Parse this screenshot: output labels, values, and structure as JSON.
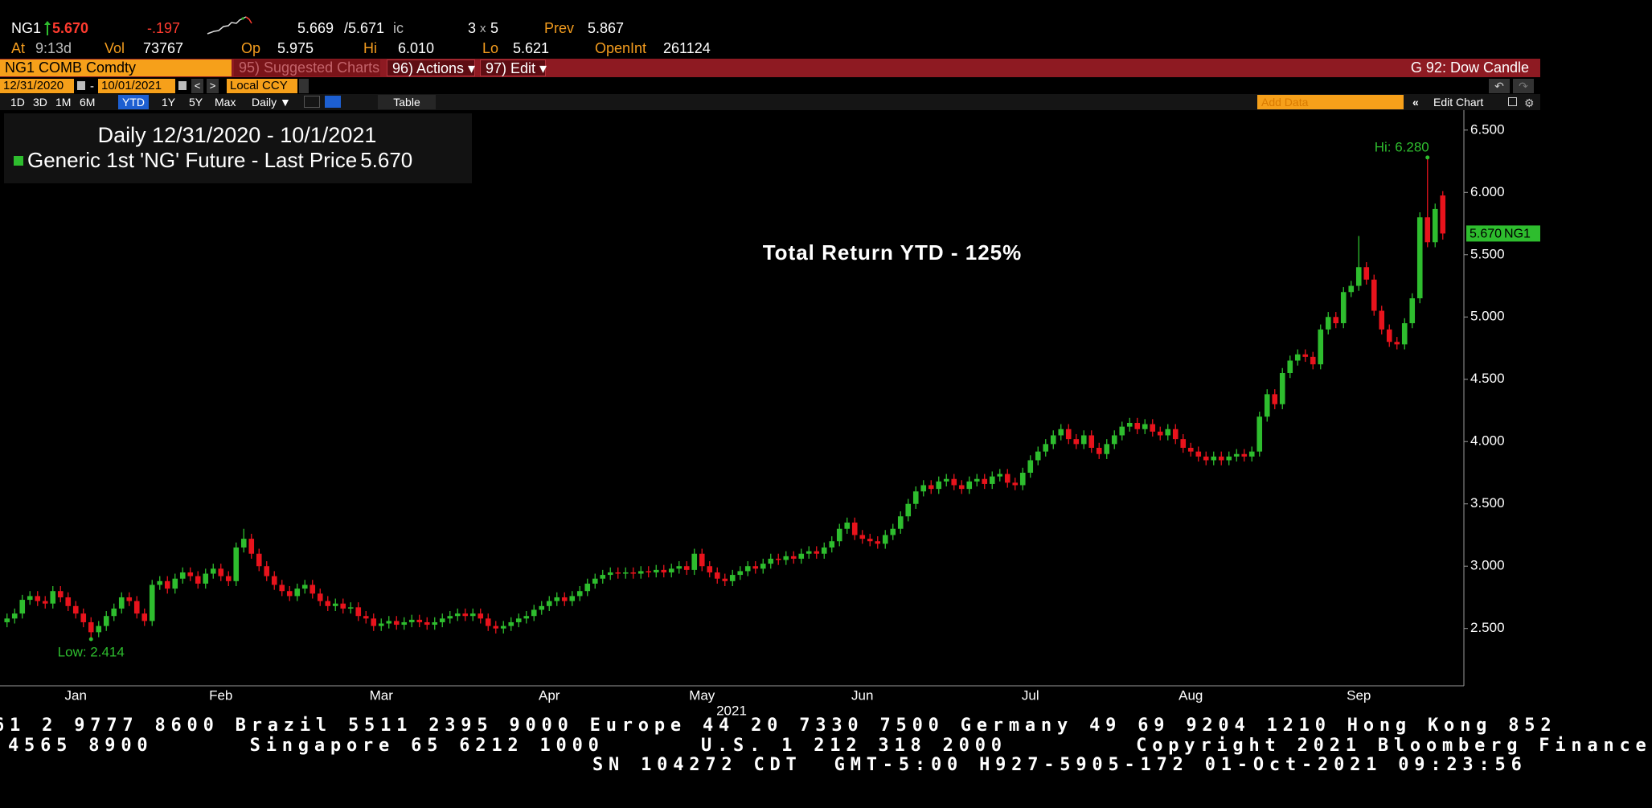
{
  "header": {
    "ticker": "NG1",
    "last": "5.670",
    "change": "-.197",
    "bid": "5.669",
    "ask": "/5.671",
    "ask_suffix": "ic",
    "size_bid": "3",
    "size_sep": "x",
    "size_ask": "5",
    "prev_label": "Prev",
    "prev": "5.867",
    "at_label": "At",
    "time": "9:13d",
    "vol_label": "Vol",
    "vol": "73767",
    "op_label": "Op",
    "op": "5.975",
    "hi_label": "Hi",
    "hi": "6.010",
    "lo_label": "Lo",
    "lo": "5.621",
    "oi_label": "OpenInt",
    "oi": "261124"
  },
  "toolbar": {
    "security": "NG1 COMB Comdty",
    "suggested": "95) Suggested Charts",
    "actions": "96) Actions ▾",
    "edit": "97) Edit ▾",
    "chart_name": "G 92: Dow Candle",
    "start_date": "12/31/2020",
    "date_sep": "-",
    "end_date": "10/01/2021",
    "currency": "Local CCY",
    "periods": [
      "1D",
      "3D",
      "1M",
      "6M",
      "YTD",
      "1Y",
      "5Y",
      "Max"
    ],
    "active_period": "YTD",
    "frequency": "Daily ▼",
    "table": "Table",
    "add_data": "Add Data",
    "edit_chart": "Edit Chart"
  },
  "chart_data": {
    "type": "candlestick",
    "title": "Daily 12/31/2020 - 10/1/2021",
    "annotation": "Total Return YTD - 125%",
    "x_label": "2021",
    "categories": [
      null,
      null,
      null,
      null,
      null,
      null,
      null,
      null,
      null,
      "Jan",
      null,
      null,
      null,
      null,
      null,
      null,
      null,
      null,
      null,
      null,
      null,
      null,
      null,
      null,
      null,
      null,
      null,
      null,
      "Feb",
      null,
      null,
      null,
      null,
      null,
      null,
      null,
      null,
      null,
      null,
      null,
      null,
      null,
      null,
      null,
      null,
      null,
      null,
      null,
      null,
      "Mar",
      null,
      null,
      null,
      null,
      null,
      null,
      null,
      null,
      null,
      null,
      null,
      null,
      null,
      null,
      null,
      null,
      null,
      null,
      null,
      null,
      null,
      "Apr",
      null,
      null,
      null,
      null,
      null,
      null,
      null,
      null,
      null,
      null,
      null,
      null,
      null,
      null,
      null,
      null,
      null,
      null,
      null,
      "May",
      null,
      null,
      null,
      null,
      null,
      null,
      null,
      null,
      null,
      null,
      null,
      null,
      null,
      null,
      null,
      null,
      null,
      null,
      null,
      null,
      "Jun",
      null,
      null,
      null,
      null,
      null,
      null,
      null,
      null,
      null,
      null,
      null,
      null,
      null,
      null,
      null,
      null,
      null,
      null,
      null,
      null,
      null,
      "Jul",
      null,
      null,
      null,
      null,
      null,
      null,
      null,
      null,
      null,
      null,
      null,
      null,
      null,
      null,
      null,
      null,
      null,
      null,
      null,
      null,
      "Aug",
      null,
      null,
      null,
      null,
      null,
      null,
      null,
      null,
      null,
      null,
      null,
      null,
      null,
      null,
      null,
      null,
      null,
      null,
      null,
      null,
      null,
      "Sep",
      null,
      null,
      null,
      null,
      null,
      null,
      null,
      null,
      null,
      null,
      null
    ],
    "series": [
      {
        "name": "Generic 1st 'NG' Future - Last Price",
        "last_label": "5.670",
        "axis_tag": "NG1",
        "color": "#2ebd2e",
        "down_color": "#e8131c",
        "high_label": "Hi: 6.280",
        "low_label": "Low: 2.414",
        "open": [
          2.55,
          2.58,
          2.62,
          2.73,
          2.76,
          2.72,
          2.7,
          2.8,
          2.75,
          2.68,
          2.62,
          2.55,
          2.47,
          2.52,
          2.6,
          2.66,
          2.75,
          2.72,
          2.62,
          2.56,
          2.85,
          2.88,
          2.82,
          2.9,
          2.95,
          2.92,
          2.86,
          2.94,
          2.98,
          2.92,
          2.88,
          3.15,
          3.22,
          3.1,
          3.0,
          2.92,
          2.85,
          2.8,
          2.76,
          2.82,
          2.85,
          2.78,
          2.72,
          2.68,
          2.7,
          2.66,
          2.67,
          2.6,
          2.58,
          2.52,
          2.54,
          2.56,
          2.53,
          2.55,
          2.57,
          2.55,
          2.53,
          2.55,
          2.58,
          2.6,
          2.62,
          2.6,
          2.62,
          2.58,
          2.52,
          2.5,
          2.52,
          2.55,
          2.58,
          2.6,
          2.65,
          2.68,
          2.72,
          2.75,
          2.72,
          2.76,
          2.8,
          2.86,
          2.9,
          2.93,
          2.95,
          2.94,
          2.95,
          2.94,
          2.96,
          2.95,
          2.97,
          2.95,
          2.98,
          3.0,
          2.97,
          3.1,
          3.0,
          2.95,
          2.9,
          2.88,
          2.93,
          2.96,
          3.0,
          2.98,
          3.02,
          3.06,
          3.05,
          3.08,
          3.06,
          3.1,
          3.12,
          3.1,
          3.15,
          3.2,
          3.3,
          3.35,
          3.25,
          3.22,
          3.2,
          3.18,
          3.25,
          3.3,
          3.4,
          3.5,
          3.6,
          3.65,
          3.62,
          3.68,
          3.7,
          3.65,
          3.62,
          3.68,
          3.7,
          3.66,
          3.72,
          3.74,
          3.67,
          3.65,
          3.75,
          3.85,
          3.92,
          3.98,
          4.05,
          4.1,
          4.02,
          3.98,
          4.05,
          3.95,
          3.9,
          3.98,
          4.05,
          4.12,
          4.15,
          4.1,
          4.14,
          4.08,
          4.05,
          4.1,
          4.02,
          3.95,
          3.92,
          3.88,
          3.85,
          3.88,
          3.85,
          3.88,
          3.9,
          3.88,
          3.92,
          4.2,
          4.38,
          4.3,
          4.55,
          4.65,
          4.7,
          4.68,
          4.62,
          4.9,
          5.0,
          4.95,
          5.2,
          5.25,
          5.4,
          5.3,
          5.05,
          4.9,
          4.8,
          4.78,
          4.95,
          5.15,
          5.8,
          5.6,
          5.975
        ],
        "high": [
          2.62,
          2.66,
          2.77,
          2.8,
          2.8,
          2.76,
          2.84,
          2.84,
          2.79,
          2.72,
          2.66,
          2.59,
          2.56,
          2.64,
          2.7,
          2.79,
          2.79,
          2.76,
          2.66,
          2.89,
          2.92,
          2.92,
          2.94,
          2.99,
          2.99,
          2.96,
          2.98,
          3.02,
          3.02,
          2.96,
          3.19,
          3.3,
          3.26,
          3.14,
          3.04,
          2.96,
          2.89,
          2.84,
          2.86,
          2.89,
          2.89,
          2.82,
          2.76,
          2.74,
          2.74,
          2.71,
          2.71,
          2.64,
          2.62,
          2.58,
          2.6,
          2.6,
          2.59,
          2.61,
          2.61,
          2.59,
          2.59,
          2.62,
          2.64,
          2.66,
          2.66,
          2.66,
          2.66,
          2.62,
          2.56,
          2.56,
          2.59,
          2.62,
          2.64,
          2.69,
          2.72,
          2.76,
          2.79,
          2.79,
          2.8,
          2.84,
          2.9,
          2.94,
          2.97,
          2.99,
          2.99,
          2.99,
          2.99,
          3.0,
          3.0,
          3.01,
          3.01,
          3.02,
          3.04,
          3.04,
          3.14,
          3.14,
          3.04,
          2.99,
          2.94,
          2.97,
          3.0,
          3.04,
          3.04,
          3.06,
          3.1,
          3.1,
          3.12,
          3.12,
          3.14,
          3.16,
          3.16,
          3.19,
          3.24,
          3.34,
          3.39,
          3.39,
          3.29,
          3.26,
          3.24,
          3.29,
          3.34,
          3.44,
          3.54,
          3.64,
          3.69,
          3.69,
          3.72,
          3.74,
          3.74,
          3.69,
          3.72,
          3.74,
          3.74,
          3.76,
          3.78,
          3.78,
          3.71,
          3.79,
          3.89,
          3.96,
          4.02,
          4.09,
          4.14,
          4.14,
          4.06,
          4.09,
          4.09,
          3.99,
          4.02,
          4.09,
          4.16,
          4.19,
          4.19,
          4.18,
          4.18,
          4.12,
          4.14,
          4.14,
          4.06,
          3.99,
          3.96,
          3.92,
          3.92,
          3.92,
          3.92,
          3.94,
          3.94,
          3.96,
          4.24,
          4.42,
          4.42,
          4.59,
          4.69,
          4.74,
          4.74,
          4.72,
          4.94,
          5.04,
          5.04,
          5.24,
          5.29,
          5.65,
          5.44,
          5.34,
          5.09,
          4.94,
          4.84,
          4.99,
          5.19,
          5.84,
          6.28,
          5.91,
          6.01
        ],
        "low": [
          2.51,
          2.54,
          2.58,
          2.69,
          2.68,
          2.66,
          2.66,
          2.71,
          2.64,
          2.58,
          2.51,
          2.414,
          2.43,
          2.48,
          2.56,
          2.62,
          2.68,
          2.58,
          2.52,
          2.52,
          2.81,
          2.78,
          2.78,
          2.86,
          2.88,
          2.82,
          2.82,
          2.9,
          2.88,
          2.84,
          2.84,
          3.11,
          3.06,
          2.96,
          2.88,
          2.81,
          2.76,
          2.72,
          2.72,
          2.78,
          2.74,
          2.68,
          2.64,
          2.64,
          2.62,
          2.62,
          2.56,
          2.54,
          2.48,
          2.48,
          2.5,
          2.49,
          2.49,
          2.51,
          2.51,
          2.49,
          2.49,
          2.51,
          2.54,
          2.56,
          2.56,
          2.56,
          2.54,
          2.48,
          2.46,
          2.46,
          2.48,
          2.51,
          2.54,
          2.56,
          2.61,
          2.64,
          2.68,
          2.68,
          2.68,
          2.72,
          2.76,
          2.82,
          2.86,
          2.89,
          2.9,
          2.9,
          2.9,
          2.9,
          2.91,
          2.91,
          2.91,
          2.91,
          2.94,
          2.93,
          2.93,
          2.96,
          2.91,
          2.86,
          2.84,
          2.84,
          2.89,
          2.92,
          2.94,
          2.94,
          2.98,
          3.01,
          3.01,
          3.02,
          3.02,
          3.06,
          3.06,
          3.06,
          3.11,
          3.16,
          3.26,
          3.21,
          3.18,
          3.16,
          3.14,
          3.14,
          3.21,
          3.26,
          3.36,
          3.46,
          3.56,
          3.58,
          3.58,
          3.64,
          3.61,
          3.58,
          3.58,
          3.64,
          3.62,
          3.62,
          3.68,
          3.63,
          3.61,
          3.61,
          3.71,
          3.81,
          3.88,
          3.94,
          4.01,
          3.98,
          3.94,
          3.94,
          3.91,
          3.86,
          3.86,
          3.94,
          4.01,
          4.08,
          4.06,
          4.06,
          4.04,
          4.01,
          4.01,
          3.98,
          3.91,
          3.88,
          3.84,
          3.81,
          3.81,
          3.81,
          3.81,
          3.84,
          3.84,
          3.84,
          3.88,
          4.16,
          4.26,
          4.26,
          4.51,
          4.61,
          4.64,
          4.58,
          4.58,
          4.86,
          4.91,
          4.91,
          5.16,
          5.21,
          5.26,
          5.01,
          4.86,
          4.76,
          4.74,
          4.74,
          4.91,
          5.11,
          5.56,
          5.56,
          5.621
        ],
        "close": [
          2.58,
          2.62,
          2.73,
          2.76,
          2.72,
          2.7,
          2.8,
          2.75,
          2.68,
          2.62,
          2.55,
          2.47,
          2.52,
          2.6,
          2.66,
          2.75,
          2.72,
          2.62,
          2.56,
          2.85,
          2.88,
          2.82,
          2.9,
          2.95,
          2.92,
          2.86,
          2.94,
          2.98,
          2.92,
          2.88,
          3.15,
          3.22,
          3.1,
          3.0,
          2.92,
          2.85,
          2.8,
          2.76,
          2.82,
          2.85,
          2.78,
          2.72,
          2.68,
          2.7,
          2.66,
          2.67,
          2.6,
          2.58,
          2.52,
          2.54,
          2.56,
          2.53,
          2.55,
          2.57,
          2.55,
          2.53,
          2.55,
          2.58,
          2.6,
          2.62,
          2.6,
          2.62,
          2.58,
          2.52,
          2.5,
          2.52,
          2.55,
          2.58,
          2.6,
          2.65,
          2.68,
          2.72,
          2.75,
          2.72,
          2.76,
          2.8,
          2.86,
          2.9,
          2.93,
          2.95,
          2.94,
          2.95,
          2.94,
          2.96,
          2.95,
          2.97,
          2.95,
          2.98,
          3.0,
          2.97,
          3.1,
          3.0,
          2.95,
          2.9,
          2.88,
          2.93,
          2.96,
          3.0,
          2.98,
          3.02,
          3.06,
          3.05,
          3.08,
          3.06,
          3.1,
          3.12,
          3.1,
          3.15,
          3.2,
          3.3,
          3.35,
          3.25,
          3.22,
          3.2,
          3.18,
          3.25,
          3.3,
          3.4,
          3.5,
          3.6,
          3.65,
          3.62,
          3.68,
          3.7,
          3.65,
          3.62,
          3.68,
          3.7,
          3.66,
          3.72,
          3.74,
          3.67,
          3.65,
          3.75,
          3.85,
          3.92,
          3.98,
          4.05,
          4.1,
          4.02,
          3.98,
          4.05,
          3.95,
          3.9,
          3.98,
          4.05,
          4.12,
          4.15,
          4.1,
          4.14,
          4.08,
          4.05,
          4.1,
          4.02,
          3.95,
          3.92,
          3.88,
          3.85,
          3.88,
          3.85,
          3.88,
          3.9,
          3.88,
          3.92,
          4.2,
          4.38,
          4.3,
          4.55,
          4.65,
          4.7,
          4.68,
          4.62,
          4.9,
          5.0,
          4.95,
          5.2,
          5.25,
          5.4,
          5.3,
          5.05,
          4.9,
          4.8,
          4.78,
          4.95,
          5.15,
          5.8,
          5.6,
          5.867,
          5.67
        ]
      }
    ],
    "ylim": [
      2.04,
      6.66
    ],
    "yticks": [
      {
        "value": 2.5,
        "label": "2.500"
      },
      {
        "value": 3,
        "label": "3.000"
      },
      {
        "value": 3.5,
        "label": "3.500"
      },
      {
        "value": 4,
        "label": "4.000"
      },
      {
        "value": 4.5,
        "label": "4.500"
      },
      {
        "value": 5,
        "label": "5.000"
      },
      {
        "value": 5.5,
        "label": "5.500"
      },
      {
        "value": 6,
        "label": "6.000"
      },
      {
        "value": 6.5,
        "label": "6.500"
      }
    ],
    "axis_side": "right",
    "grid": false
  },
  "footer": {
    "lines": [
      "61 2 9777 8600 Brazil 5511 2395 9000 Europe 44 20 7330 7500 Germany 49 69 9204 1210 Hong Kong 852",
      "4565 8900      Singapore 65 6212 1000      U.S. 1 212 318 2000        Copyright 2021 Bloomberg Finance",
      "SN 104272 CDT  GMT-5:00 H927-5905-172 01-Oct-2021 09:23:56"
    ]
  }
}
